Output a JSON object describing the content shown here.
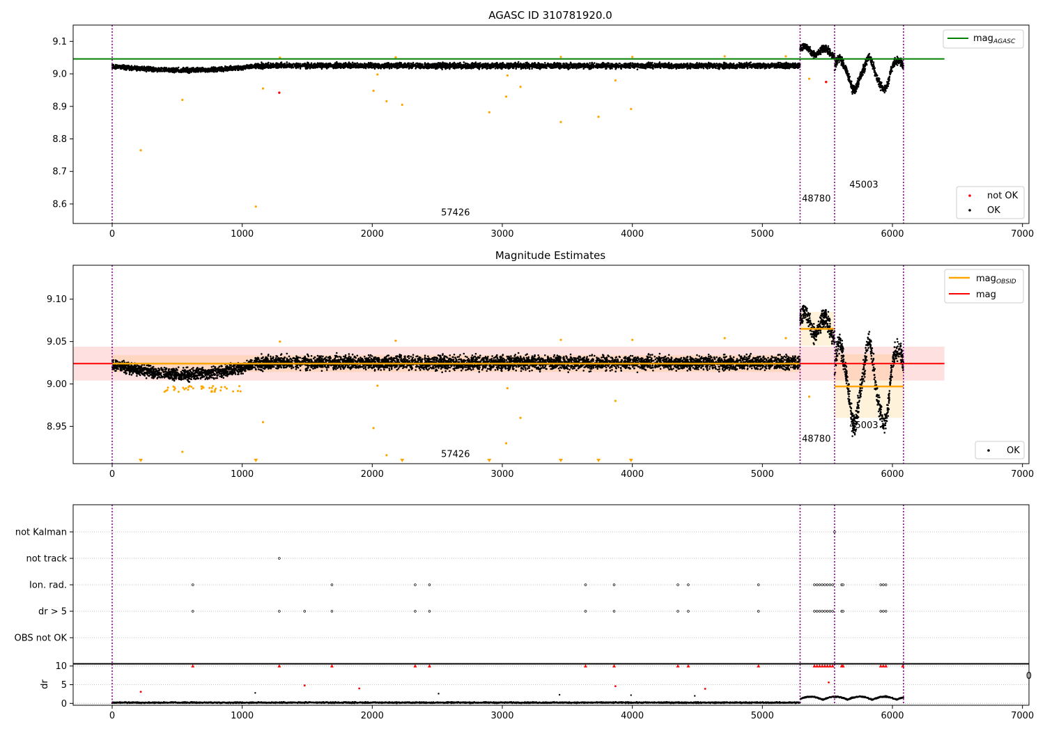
{
  "chart_data": [
    {
      "type": "scatter",
      "title": "AGASC ID 310781920.0",
      "xlim": [
        -300,
        7050
      ],
      "ylim": [
        8.54,
        9.15
      ],
      "xticks": [
        0,
        1000,
        2000,
        3000,
        4000,
        5000,
        6000,
        7000
      ],
      "yticks": [
        8.6,
        8.7,
        8.8,
        8.9,
        9.0,
        9.1
      ],
      "ytick_labels": [
        "8.6",
        "8.7",
        "8.8",
        "8.9",
        "9.0",
        "9.1"
      ],
      "legend_top": {
        "placement": "top-right",
        "entries": [
          "mag$_{AGASC}$"
        ],
        "mag": "mag",
        "sub": "AGASC"
      },
      "legend_bottom": {
        "placement": "bottom-right",
        "entries": [
          "not OK",
          "OK"
        ]
      },
      "reference_line": {
        "name": "mag_AGASC",
        "y": 9.046,
        "x": [
          -300,
          6400
        ],
        "color": "#008000"
      },
      "obsid_boundaries": [
        0,
        5290,
        5555,
        6085
      ],
      "obsid_labels": [
        {
          "text": "57426",
          "x": 2640,
          "y": 8.565
        },
        {
          "text": "48780",
          "x": 5415,
          "y": 8.607
        },
        {
          "text": "45003",
          "x": 5780,
          "y": 8.65
        }
      ],
      "segments": [
        {
          "x0": 0,
          "x1": 1100,
          "base": 9.015,
          "pattern": "dip",
          "depth": 0.012,
          "noise": 0.005
        },
        {
          "x0": 1100,
          "x1": 5290,
          "base": 9.025,
          "pattern": "flat",
          "noise": 0.006
        },
        {
          "x0": 5290,
          "x1": 5555,
          "base": 9.075,
          "pattern": "wave",
          "noise": 0.008
        },
        {
          "x0": 5555,
          "x1": 6085,
          "base": 9.0,
          "pattern": "wave2",
          "noise": 0.01
        }
      ],
      "outliers_not_ok": [
        [
          1285,
          8.942
        ],
        [
          5490,
          8.975
        ]
      ],
      "outliers_orange": [
        [
          220,
          8.765
        ],
        [
          540,
          8.92
        ],
        [
          1105,
          8.592
        ],
        [
          1160,
          8.955
        ],
        [
          2010,
          8.948
        ],
        [
          2040,
          8.998
        ],
        [
          2110,
          8.916
        ],
        [
          2230,
          8.905
        ],
        [
          2900,
          8.882
        ],
        [
          3030,
          8.93
        ],
        [
          3040,
          8.995
        ],
        [
          3140,
          8.96
        ],
        [
          3450,
          8.852
        ],
        [
          3740,
          8.868
        ],
        [
          3870,
          8.98
        ],
        [
          3990,
          8.892
        ],
        [
          5360,
          8.985
        ],
        [
          1290,
          9.05
        ],
        [
          2180,
          9.051
        ],
        [
          3450,
          9.052
        ],
        [
          4000,
          9.052
        ],
        [
          4710,
          9.054
        ],
        [
          5180,
          9.054
        ]
      ],
      "series_colors": {
        "ok": "#000000",
        "not_ok": "#ff0000",
        "outlier": "#ffa500"
      }
    },
    {
      "type": "scatter",
      "title": "Magnitude Estimates",
      "xlim": [
        -300,
        7050
      ],
      "ylim": [
        8.906,
        9.14
      ],
      "xticks": [
        0,
        1000,
        2000,
        3000,
        4000,
        5000,
        6000,
        7000
      ],
      "yticks": [
        8.95,
        9.0,
        9.05,
        9.1
      ],
      "ytick_labels": [
        "8.95",
        "9.00",
        "9.05",
        "9.10"
      ],
      "legend_top": {
        "placement": "top-right",
        "entries": [
          "mag$_{OBSID}$",
          "mag"
        ],
        "mag_obsid": "mag",
        "sub": "OBSID",
        "mag": "mag"
      },
      "legend_bottom": {
        "placement": "bottom-right",
        "entries": [
          "OK"
        ]
      },
      "mean_line": {
        "y": 9.024,
        "x": [
          -300,
          6400
        ],
        "band": [
          9.004,
          9.044
        ],
        "color": "#ff0000"
      },
      "obsid_means": [
        {
          "x0": 0,
          "x1": 5290,
          "y": 9.024,
          "band": [
            9.014,
            9.034
          ]
        },
        {
          "x0": 5290,
          "x1": 5555,
          "y": 9.065,
          "band": [
            9.045,
            9.085
          ]
        },
        {
          "x0": 5555,
          "x1": 6085,
          "y": 8.997,
          "band": [
            8.96,
            9.035
          ]
        }
      ],
      "obsid_boundaries": [
        0,
        5290,
        5555,
        6085
      ],
      "obsid_labels": [
        {
          "text": "57426",
          "x": 2640,
          "y": 8.914
        },
        {
          "text": "48780",
          "x": 5415,
          "y": 8.932
        },
        {
          "text": "45003",
          "x": 5780,
          "y": 8.948
        }
      ],
      "low_markers_x": [
        220,
        1105,
        2230,
        2900,
        3450,
        3740,
        3990
      ]
    },
    {
      "type": "scatter",
      "title": "",
      "xlim": [
        -300,
        7050
      ],
      "flags": [
        "not Kalman",
        "not track",
        "Ion. rad.",
        "dr > 5",
        "OBS not OK"
      ],
      "flag_points": {
        "not Kalman": [
          5555
        ],
        "not track": [
          1285
        ],
        "Ion. rad.": [
          620,
          1690,
          2330,
          2440,
          3640,
          3860,
          4350,
          4430,
          4970,
          5400,
          5420,
          5440,
          5460,
          5480,
          5500,
          5520,
          5540,
          5610,
          5620,
          5910,
          5930,
          5950
        ],
        "dr > 5": [
          620,
          1285,
          1480,
          1690,
          2330,
          2440,
          3640,
          3860,
          4350,
          4430,
          4970,
          5400,
          5420,
          5440,
          5460,
          5480,
          5500,
          5520,
          5540,
          5610,
          5620,
          5910,
          5930,
          5950
        ],
        "OBS not OK": []
      },
      "stray_tick": "0"
    },
    {
      "type": "scatter",
      "title": "",
      "xlim": [
        -300,
        7050
      ],
      "ylim": [
        -0.5,
        10.5
      ],
      "xticks": [
        0,
        1000,
        2000,
        3000,
        4000,
        5000,
        6000,
        7000
      ],
      "yticks": [
        0,
        5,
        10
      ],
      "ytick_labels": [
        "0",
        "5",
        "10"
      ],
      "ylabel": "dr",
      "clipped_x": [
        620,
        1285,
        1690,
        2330,
        2440,
        3640,
        3860,
        4350,
        4430,
        4970,
        5400,
        5420,
        5440,
        5460,
        5480,
        5500,
        5520,
        5540,
        5610,
        5620,
        5910,
        5930,
        5950,
        6080
      ],
      "red_points": [
        [
          220,
          3.1
        ],
        [
          1480,
          4.8
        ],
        [
          1900,
          4.0
        ],
        [
          3870,
          4.6
        ],
        [
          4560,
          3.9
        ],
        [
          5510,
          5.6
        ]
      ],
      "gray_points": [
        [
          1100,
          2.8
        ],
        [
          2510,
          2.6
        ],
        [
          3440,
          2.3
        ],
        [
          3990,
          2.2
        ],
        [
          4480,
          2.0
        ]
      ],
      "obsid_boundaries": [
        0,
        5290,
        5555,
        6085
      ]
    }
  ]
}
